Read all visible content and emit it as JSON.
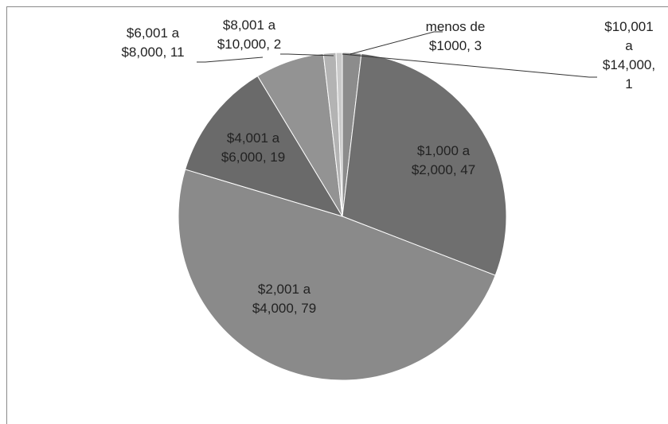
{
  "chart_data": {
    "type": "pie",
    "categories": [
      "menos de $1000",
      "$1,000 a $2,000",
      "$2,001 a $4,000",
      "$4,001 a $6,000",
      "$6,001 a $8,000",
      "$8,001 a $10,000",
      "$10,001 a $14,000"
    ],
    "values": [
      3,
      47,
      79,
      19,
      11,
      2,
      1
    ],
    "colors": [
      "#8c8c8c",
      "#6f6f6f",
      "#8a8a8a",
      "#6a6a6a",
      "#939393",
      "#b3b3b3",
      "#cacaca"
    ],
    "label_separator": ", "
  }
}
